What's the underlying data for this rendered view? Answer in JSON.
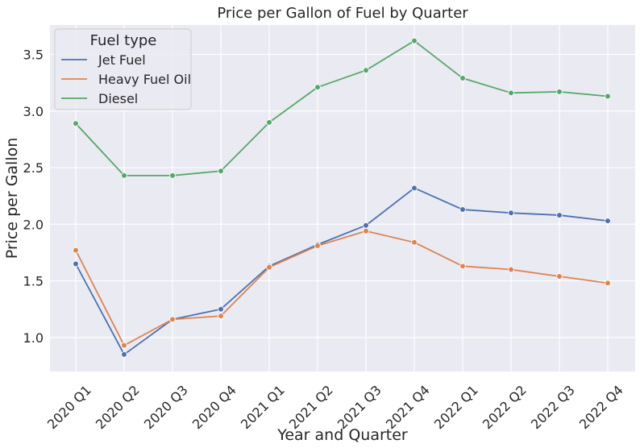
{
  "chart_data": {
    "type": "line",
    "title": "Price per Gallon of Fuel by Quarter",
    "xlabel": "Year and Quarter",
    "ylabel": "Price per Gallon",
    "categories": [
      "2020 Q1",
      "2020 Q2",
      "2020 Q3",
      "2020 Q4",
      "2021 Q1",
      "2021 Q2",
      "2021 Q3",
      "2021 Q4",
      "2022 Q1",
      "2022 Q2",
      "2022 Q3",
      "2022 Q4"
    ],
    "ylim": [
      0.7,
      3.76
    ],
    "yticks": [
      1.0,
      1.5,
      2.0,
      2.5,
      3.0,
      3.5
    ],
    "ytick_labels": [
      "1.0",
      "1.5",
      "2.0",
      "2.5",
      "3.0",
      "3.5"
    ],
    "grid": true,
    "legend": {
      "title": "Fuel type",
      "position": "top-left"
    },
    "series": [
      {
        "name": "Jet Fuel",
        "color": "#4c72b0",
        "values": [
          1.65,
          0.85,
          1.16,
          1.25,
          1.63,
          1.82,
          1.99,
          2.32,
          2.13,
          2.1,
          2.08,
          2.03
        ]
      },
      {
        "name": "Heavy Fuel Oil",
        "color": "#dd8452",
        "values": [
          1.77,
          0.93,
          1.16,
          1.19,
          1.62,
          1.81,
          1.94,
          1.84,
          1.63,
          1.6,
          1.54,
          1.48
        ]
      },
      {
        "name": "Diesel",
        "color": "#55a868",
        "values": [
          2.89,
          2.43,
          2.43,
          2.47,
          2.9,
          3.21,
          3.36,
          3.62,
          3.29,
          3.16,
          3.17,
          3.13
        ]
      }
    ],
    "colors": {
      "plot_background": "#eaeaf2",
      "grid": "#ffffff"
    }
  }
}
